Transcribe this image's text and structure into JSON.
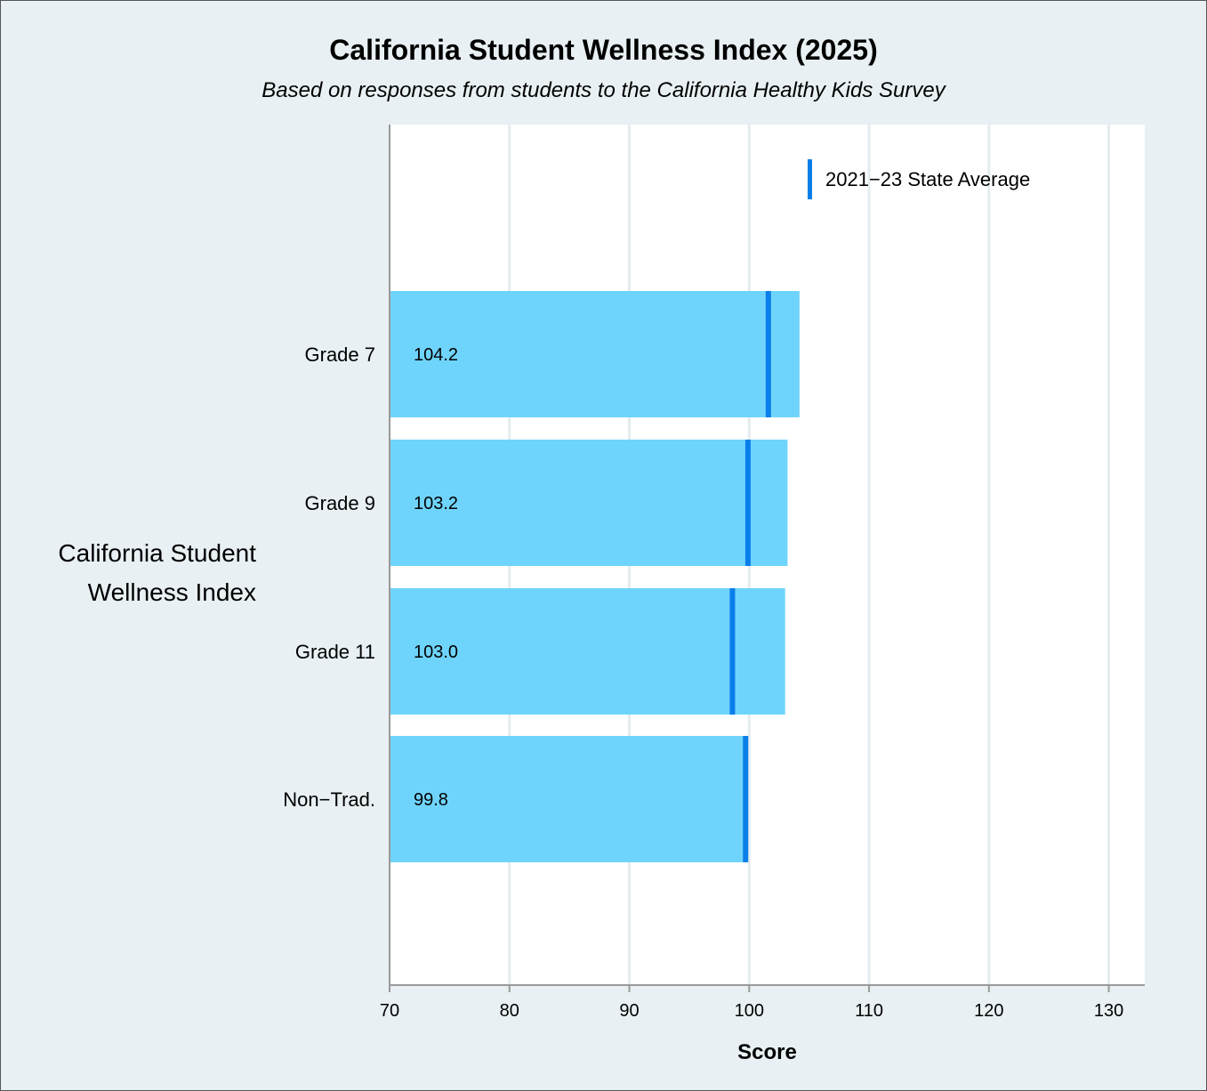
{
  "chart_data": {
    "type": "bar",
    "orientation": "horizontal",
    "title": "California Student Wellness Index (2025)",
    "subtitle": "Based on responses from students to the California Healthy Kids Survey",
    "group_label": "California Student Wellness Index",
    "categories": [
      "Grade 7",
      "Grade 9",
      "Grade 11",
      "Non−Trad."
    ],
    "values": [
      104.2,
      103.2,
      103.0,
      99.8
    ],
    "value_labels": [
      "104.2",
      "103.2",
      "103.0",
      "99.8"
    ],
    "reference": {
      "name": "2021−23 State Average",
      "values": [
        101.6,
        99.9,
        98.6,
        99.7
      ]
    },
    "xlabel": "Score",
    "ylabel": "",
    "xlim": [
      70,
      133
    ],
    "xticks": [
      70,
      80,
      90,
      100,
      110,
      120,
      130
    ],
    "xtick_labels": [
      "70",
      "80",
      "90",
      "100",
      "110",
      "120",
      "130"
    ],
    "grid": "vertical",
    "legend_position": "top-right",
    "colors": {
      "bar": "#6fd4fc",
      "reference": "#0a7fea",
      "background": "#e8f0f3",
      "plot_background": "#ffffff",
      "gridline": "#e4ecef",
      "axis": "#999999"
    }
  }
}
